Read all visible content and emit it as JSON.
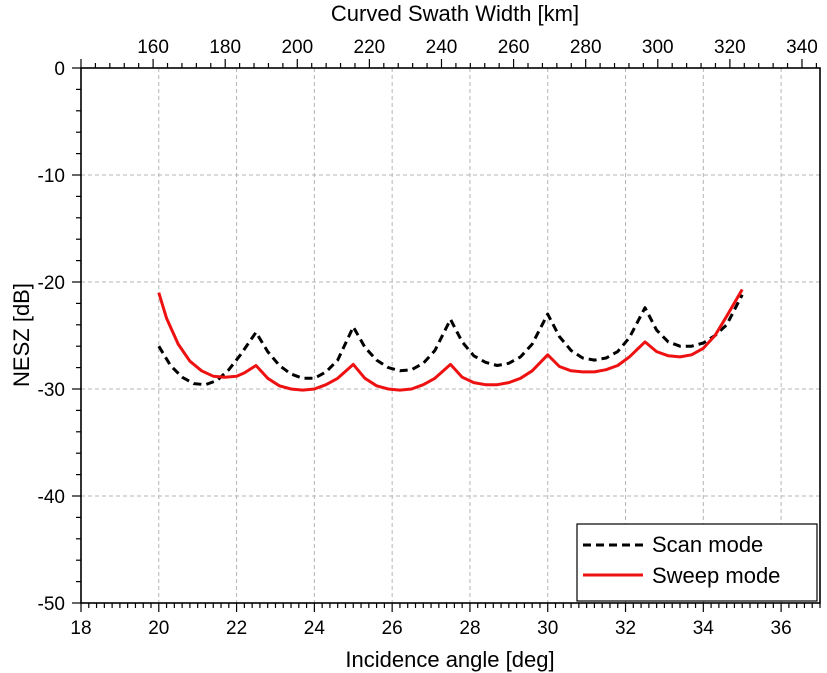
{
  "chart_data": {
    "type": "line",
    "xlabel": "Incidence angle [deg]",
    "ylabel": "NESZ [dB]",
    "x2label": "Curved Swath Width [km]",
    "xlim": [
      18,
      37
    ],
    "ylim": [
      -50,
      0
    ],
    "x2lim": [
      140,
      345
    ],
    "xticks": [
      18,
      20,
      22,
      24,
      26,
      28,
      30,
      32,
      34,
      36
    ],
    "yticks": [
      0,
      -10,
      -20,
      -30,
      -40,
      -50
    ],
    "x2ticks": [
      160,
      180,
      200,
      220,
      240,
      260,
      280,
      300,
      320,
      340
    ],
    "grid": true,
    "legend_position": "bottom-right",
    "series": [
      {
        "name": "Scan mode",
        "color": "#000000",
        "dash": "dashed",
        "x": [
          20.0,
          20.3,
          20.6,
          20.9,
          21.2,
          21.5,
          21.8,
          22.1,
          22.5,
          22.8,
          23.1,
          23.4,
          23.7,
          24.0,
          24.3,
          24.6,
          25.0,
          25.3,
          25.6,
          25.9,
          26.2,
          26.5,
          26.8,
          27.1,
          27.5,
          27.8,
          28.1,
          28.4,
          28.7,
          29.0,
          29.3,
          29.6,
          30.0,
          30.3,
          30.6,
          30.9,
          31.2,
          31.5,
          31.8,
          32.1,
          32.5,
          32.8,
          33.1,
          33.4,
          33.7,
          34.0,
          34.3,
          34.6,
          35.0
        ],
        "y": [
          -26.0,
          -27.8,
          -28.9,
          -29.5,
          -29.6,
          -29.2,
          -28.2,
          -26.8,
          -24.7,
          -26.5,
          -27.8,
          -28.6,
          -29.0,
          -29.0,
          -28.4,
          -27.3,
          -24.2,
          -26.1,
          -27.3,
          -28.0,
          -28.3,
          -28.2,
          -27.6,
          -26.4,
          -23.5,
          -25.6,
          -26.9,
          -27.5,
          -27.8,
          -27.6,
          -27.0,
          -25.8,
          -23.0,
          -25.1,
          -26.4,
          -27.1,
          -27.3,
          -27.1,
          -26.5,
          -25.2,
          -22.4,
          -24.5,
          -25.6,
          -26.0,
          -26.0,
          -25.7,
          -25.0,
          -24.0,
          -21.2
        ]
      },
      {
        "name": "Sweep mode",
        "color": "#ee1111",
        "dash": "solid",
        "x": [
          20.0,
          20.2,
          20.5,
          20.8,
          21.1,
          21.4,
          21.7,
          22.0,
          22.2,
          22.5,
          22.8,
          23.1,
          23.4,
          23.7,
          24.0,
          24.3,
          24.6,
          25.0,
          25.3,
          25.6,
          25.9,
          26.2,
          26.5,
          26.8,
          27.1,
          27.5,
          27.8,
          28.1,
          28.4,
          28.7,
          29.0,
          29.3,
          29.6,
          30.0,
          30.3,
          30.6,
          30.9,
          31.2,
          31.5,
          31.8,
          32.1,
          32.5,
          32.8,
          33.1,
          33.4,
          33.7,
          34.0,
          34.3,
          34.6,
          35.0
        ],
        "y": [
          -21.0,
          -23.4,
          -25.8,
          -27.4,
          -28.3,
          -28.8,
          -28.9,
          -28.8,
          -28.5,
          -27.8,
          -29.0,
          -29.7,
          -30.0,
          -30.1,
          -30.0,
          -29.6,
          -29.0,
          -27.7,
          -29.0,
          -29.7,
          -30.0,
          -30.1,
          -30.0,
          -29.6,
          -29.0,
          -27.7,
          -28.9,
          -29.4,
          -29.6,
          -29.6,
          -29.4,
          -29.0,
          -28.3,
          -26.8,
          -27.9,
          -28.3,
          -28.4,
          -28.4,
          -28.2,
          -27.8,
          -27.0,
          -25.6,
          -26.5,
          -26.9,
          -27.0,
          -26.8,
          -26.2,
          -25.0,
          -23.2,
          -20.7
        ]
      }
    ]
  }
}
